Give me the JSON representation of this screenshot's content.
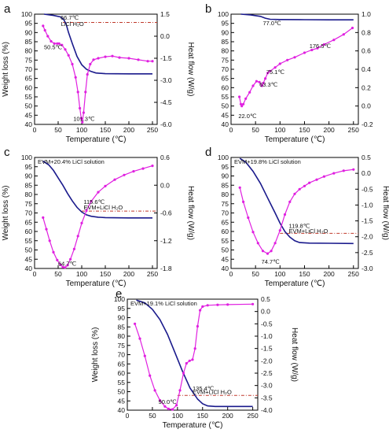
{
  "colors": {
    "weight": "#1a1a8c",
    "heat": "#e020e0",
    "ref": "#c0392b",
    "axis": "#000000"
  },
  "chart_data": [
    {
      "type": "line",
      "panel": "a",
      "xlabel": "Temperature (℃)",
      "ylabel": "Weight loss (%)",
      "y2label": "Heat flow (W/g)",
      "xlim": [
        0,
        260
      ],
      "ylim": [
        40,
        100
      ],
      "y2lim": [
        -6.0,
        1.5
      ],
      "xticks": [
        "0",
        "50",
        "100",
        "150",
        "200",
        "250"
      ],
      "yticks": [
        "40",
        "45",
        "50",
        "55",
        "60",
        "65",
        "70",
        "75",
        "80",
        "85",
        "90",
        "95",
        "100"
      ],
      "y2ticks": [
        "-6.0",
        "-4.5",
        "-3.0",
        "-1.5",
        "0.0",
        "1.5"
      ],
      "legend_box": "",
      "hline": 95.5,
      "series": [
        {
          "axis": "left",
          "role": "weight",
          "x": [
            20,
            40,
            55,
            62,
            67,
            72,
            80,
            90,
            100,
            110,
            120,
            130,
            150,
            200,
            250
          ],
          "y": [
            100,
            99.3,
            98.5,
            97,
            94.5,
            90,
            84,
            77,
            72.5,
            70,
            68.8,
            68,
            67.6,
            67.5,
            67.5
          ]
        },
        {
          "axis": "right",
          "role": "heat",
          "x": [
            18,
            22,
            28,
            35,
            42,
            48,
            52,
            58,
            65,
            72,
            80,
            87,
            92,
            96,
            99,
            101.3,
            104,
            108,
            112,
            118,
            125,
            135,
            150,
            165,
            180,
            200,
            220,
            240,
            250
          ],
          "y": [
            0.7,
            0.4,
            0.0,
            -0.35,
            -0.5,
            -0.5,
            -0.5,
            -0.6,
            -0.9,
            -1.3,
            -1.9,
            -2.8,
            -3.8,
            -4.9,
            -5.6,
            -5.85,
            -5.2,
            -3.8,
            -2.6,
            -1.9,
            -1.6,
            -1.5,
            -1.4,
            -1.35,
            -1.45,
            -1.5,
            -1.6,
            -1.7,
            -1.7
          ]
        }
      ],
      "annotations": [
        {
          "text": "66.7℃",
          "x": 55,
          "y": 97
        },
        {
          "text": "LiCl H₂O",
          "x": 56,
          "y": 93.6
        },
        {
          "text": "50.5℃",
          "x": 20,
          "y": 81
        },
        {
          "text": "101.3℃",
          "x": 82,
          "y": 42
        }
      ]
    },
    {
      "type": "line",
      "panel": "b",
      "xlabel": "Temperature (℃)",
      "ylabel": "",
      "y2label": "",
      "xlim": [
        0,
        260
      ],
      "ylim": [
        40,
        100
      ],
      "y2lim": [
        -0.2,
        1.0
      ],
      "xticks": [
        "0",
        "50",
        "100",
        "150",
        "200",
        "250"
      ],
      "yticks": [
        "40",
        "45",
        "50",
        "55",
        "60",
        "65",
        "70",
        "75",
        "80",
        "85",
        "90",
        "95",
        "100"
      ],
      "y2ticks": [
        "-0.2",
        "0.0",
        "0.2",
        "0.4",
        "0.6",
        "0.8",
        "1.0"
      ],
      "legend_box": "",
      "hline": null,
      "series": [
        {
          "axis": "left",
          "role": "weight",
          "x": [
            20,
            40,
            60,
            70,
            80,
            100,
            150,
            200,
            250
          ],
          "y": [
            100,
            99.6,
            98.8,
            97.8,
            97.2,
            97.1,
            97.0,
            96.9,
            96.9
          ]
        },
        {
          "axis": "right",
          "role": "heat",
          "x": [
            17,
            20,
            22,
            25,
            30,
            38,
            45,
            52,
            58,
            63,
            66,
            70,
            75,
            80,
            90,
            100,
            115,
            130,
            150,
            165,
            176.5,
            190,
            210,
            230,
            248
          ],
          "y": [
            0.1,
            0.02,
            0.0,
            0.02,
            0.08,
            0.15,
            0.22,
            0.27,
            0.26,
            0.22,
            0.25,
            0.3,
            0.36,
            0.38,
            0.42,
            0.46,
            0.5,
            0.53,
            0.58,
            0.61,
            0.63,
            0.67,
            0.72,
            0.78,
            0.85
          ]
        }
      ],
      "annotations": [
        {
          "text": "77.0℃",
          "x": 65,
          "y": 94
        },
        {
          "text": "176.5℃",
          "x": 160,
          "y": 81.5
        },
        {
          "text": "75.1℃",
          "x": 72,
          "y": 67.5
        },
        {
          "text": "63.3℃",
          "x": 58,
          "y": 60.5
        },
        {
          "text": "22.0℃",
          "x": 15,
          "y": 43.5
        }
      ]
    },
    {
      "type": "line",
      "panel": "c",
      "xlabel": "Temperature (℃)",
      "ylabel": "Weight loss (%)",
      "y2label": "Heat flow (W/g)",
      "xlim": [
        0,
        260
      ],
      "ylim": [
        40,
        100
      ],
      "y2lim": [
        -1.8,
        0.6
      ],
      "xticks": [
        "0",
        "50",
        "100",
        "150",
        "200",
        "250"
      ],
      "yticks": [
        "40",
        "45",
        "50",
        "55",
        "60",
        "65",
        "70",
        "75",
        "80",
        "85",
        "90",
        "95",
        "100"
      ],
      "y2ticks": [
        "-1.8",
        "-1.2",
        "-0.6",
        "0.0",
        "0.6"
      ],
      "legend_box": "EVM+20.4% LiCl solution",
      "hline": 71.0,
      "series": [
        {
          "axis": "left",
          "role": "weight",
          "x": [
            18,
            30,
            40,
            50,
            60,
            70,
            80,
            90,
            100,
            110,
            120,
            135,
            150,
            200,
            250
          ],
          "y": [
            98,
            96,
            93,
            89,
            85,
            80.5,
            76.5,
            73,
            70.5,
            69,
            68.2,
            67.7,
            67.5,
            67.3,
            67.3
          ]
        },
        {
          "axis": "right",
          "role": "heat",
          "x": [
            18,
            25,
            32,
            40,
            48,
            55,
            60,
            64.7,
            70,
            76,
            84,
            92,
            100,
            110,
            120,
            135,
            150,
            170,
            190,
            210,
            230,
            250
          ],
          "y": [
            -0.7,
            -0.95,
            -1.2,
            -1.45,
            -1.62,
            -1.72,
            -1.77,
            -1.78,
            -1.73,
            -1.6,
            -1.38,
            -1.1,
            -0.82,
            -0.55,
            -0.35,
            -0.15,
            -0.02,
            0.12,
            0.22,
            0.3,
            0.36,
            0.42
          ]
        }
      ],
      "annotations": [
        {
          "text": "115.6℃",
          "x": 104,
          "y": 75
        },
        {
          "text": "EVM+LiCl H₂O",
          "x": 104,
          "y": 72
        },
        {
          "text": "64.7℃",
          "x": 50,
          "y": 41.5
        }
      ]
    },
    {
      "type": "line",
      "panel": "d",
      "xlabel": "Temperature (℃)",
      "ylabel": "",
      "y2label": "Heat flow (W/g)",
      "xlim": [
        0,
        260
      ],
      "ylim": [
        40,
        100
      ],
      "y2lim": [
        -3.0,
        0.5
      ],
      "xticks": [
        "0",
        "50",
        "100",
        "150",
        "200",
        "250"
      ],
      "yticks": [
        "40",
        "45",
        "50",
        "55",
        "60",
        "65",
        "70",
        "75",
        "80",
        "85",
        "90",
        "95",
        "100"
      ],
      "y2ticks": [
        "-3.0",
        "-2.5",
        "-2.0",
        "-1.5",
        "-1.0",
        "-0.5",
        "0.0",
        "0.5"
      ],
      "legend_box": "EVM+19.8% LiCl solution",
      "hline": 59.0,
      "series": [
        {
          "axis": "left",
          "role": "weight",
          "x": [
            18,
            30,
            45,
            60,
            75,
            90,
            100,
            110,
            120,
            130,
            140,
            160,
            200,
            250
          ],
          "y": [
            99.5,
            97.5,
            92.5,
            86,
            78,
            70,
            64.5,
            60,
            57,
            55,
            54,
            53.7,
            53.6,
            53.5
          ]
        },
        {
          "axis": "right",
          "role": "heat",
          "x": [
            18,
            25,
            35,
            45,
            55,
            65,
            74.7,
            82,
            90,
            100,
            110,
            120,
            130,
            140,
            150,
            160,
            175,
            190,
            210,
            230,
            250
          ],
          "y": [
            -0.45,
            -0.9,
            -1.4,
            -1.85,
            -2.2,
            -2.45,
            -2.53,
            -2.45,
            -2.2,
            -1.8,
            -1.3,
            -0.9,
            -0.65,
            -0.5,
            -0.4,
            -0.3,
            -0.2,
            -0.1,
            0.0,
            0.08,
            0.12
          ]
        }
      ],
      "annotations": [
        {
          "text": "119.8℃",
          "x": 118,
          "y": 62
        },
        {
          "text": "EVM+LiCl H₂O",
          "x": 118,
          "y": 59.2
        },
        {
          "text": "74.7℃",
          "x": 62,
          "y": 42.5
        }
      ]
    },
    {
      "type": "line",
      "panel": "e",
      "xlabel": "Temperature (℃)",
      "ylabel": "Weight loss (%)",
      "y2label": "Heat flow (W/g)",
      "xlim": [
        0,
        260
      ],
      "ylim": [
        40,
        100
      ],
      "y2lim": [
        -4.0,
        0.5
      ],
      "xticks": [
        "0",
        "50",
        "100",
        "150",
        "200",
        "250"
      ],
      "yticks": [
        "40",
        "45",
        "50",
        "55",
        "60",
        "65",
        "70",
        "75",
        "80",
        "85",
        "90",
        "95",
        "100"
      ],
      "y2ticks": [
        "-4.0",
        "-3.5",
        "-3.0",
        "-2.5",
        "-2.0",
        "-1.5",
        "-1.0",
        "-0.5",
        "0.0",
        "0.5"
      ],
      "legend_box": "EVM+19.1% LiCl solution",
      "hline": 48.0,
      "series": [
        {
          "axis": "left",
          "role": "weight",
          "x": [
            18,
            35,
            50,
            65,
            80,
            95,
            110,
            125,
            140,
            150,
            160,
            175,
            200,
            250
          ],
          "y": [
            99.5,
            98,
            94.5,
            89,
            81,
            71,
            61,
            52,
            46,
            43.5,
            42.3,
            42,
            42,
            42
          ]
        },
        {
          "axis": "right",
          "role": "heat",
          "x": [
            15,
            25,
            35,
            45,
            55,
            65,
            75,
            82,
            90,
            98,
            105,
            112,
            118,
            124,
            130,
            135,
            140,
            145,
            150,
            160,
            180,
            200,
            250
          ],
          "y": [
            -0.5,
            -1.1,
            -1.8,
            -2.6,
            -3.2,
            -3.6,
            -3.85,
            -3.95,
            -3.97,
            -3.8,
            -3.2,
            -2.5,
            -2.1,
            -2.0,
            -1.95,
            -1.5,
            -0.6,
            0.05,
            0.2,
            0.25,
            0.27,
            0.28,
            0.3
          ]
        }
      ],
      "annotations": [
        {
          "text": "135.4℃",
          "x": 130,
          "y": 50.6
        },
        {
          "text": "EVM+LiCl H₂O",
          "x": 130,
          "y": 48.8
        },
        {
          "text": "90.0℃",
          "x": 62,
          "y": 43.5
        }
      ]
    }
  ]
}
